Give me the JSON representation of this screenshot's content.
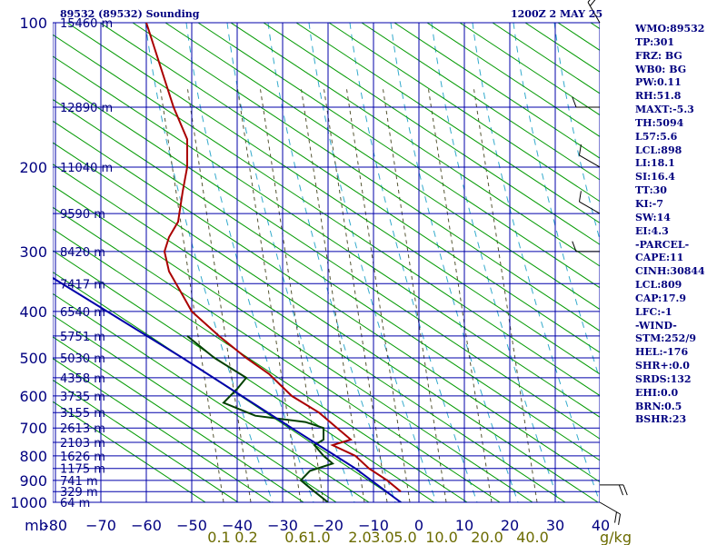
{
  "header": {
    "title": "89532 (89532) Sounding",
    "datetime": "1200Z  2 MAY 25"
  },
  "side_panel": [
    "WMO:89532",
    "TP:301",
    "FRZ: BG",
    "WB0: BG",
    "PW:0.11",
    "RH:51.8",
    "MAXT:-5.3",
    "TH:5094",
    "L57:5.6",
    "LCL:898",
    "LI:18.1",
    "SI:16.4",
    "TT:30",
    "KI:-7",
    "SW:14",
    "EI:4.3",
    "-PARCEL-",
    "CAPE:11",
    "CINH:30844",
    "LCL:809",
    "CAP:17.9",
    "LFC:-1",
    "-WIND-",
    "STM:252/9",
    "HEL:-176",
    "SHR+:0.0",
    "SRDS:132",
    "EHI:0.0",
    "BRN:0.5",
    "BSHR:23"
  ],
  "chart_data": {
    "type": "line",
    "subtype": "skew-T log-p sounding",
    "y_axis_unit": "mb",
    "x_axis_unit": "C",
    "x_ticks": [
      -80,
      -70,
      -60,
      -50,
      -40,
      -30,
      -20,
      -10,
      0,
      10,
      20,
      30,
      40
    ],
    "x_tick_labels": [
      "-80",
      "−70",
      "−60",
      "−50",
      "−40",
      "−30",
      "−20",
      "−10",
      "0",
      "10",
      "20",
      "30",
      "40"
    ],
    "pressure_levels": [
      {
        "p": 100,
        "label": "100",
        "height": "15460 m"
      },
      {
        "p": 150,
        "label": "",
        "height": "12890 m"
      },
      {
        "p": 200,
        "label": "200",
        "height": "11040 m"
      },
      {
        "p": 250,
        "label": "",
        "height": "9590 m"
      },
      {
        "p": 300,
        "label": "300",
        "height": "8420 m"
      },
      {
        "p": 350,
        "label": "",
        "height": "7417 m"
      },
      {
        "p": 400,
        "label": "400",
        "height": "6540 m"
      },
      {
        "p": 450,
        "label": "",
        "height": "5751 m"
      },
      {
        "p": 500,
        "label": "500",
        "height": "5030 m"
      },
      {
        "p": 550,
        "label": "",
        "height": "4358 m"
      },
      {
        "p": 600,
        "label": "600",
        "height": "3735 m"
      },
      {
        "p": 650,
        "label": "",
        "height": "3155 m"
      },
      {
        "p": 700,
        "label": "700",
        "height": "2613 m"
      },
      {
        "p": 750,
        "label": "",
        "height": "2103 m"
      },
      {
        "p": 800,
        "label": "800",
        "height": "1626 m"
      },
      {
        "p": 850,
        "label": "",
        "height": "1175 m"
      },
      {
        "p": 900,
        "label": "900",
        "height": "741 m"
      },
      {
        "p": 950,
        "label": "",
        "height": "329 m"
      },
      {
        "p": 1000,
        "label": "1000",
        "height": "64 m"
      }
    ],
    "mixing_ratio_labels": [
      {
        "value": "0.1",
        "t": -44
      },
      {
        "value": "0.2",
        "t": -38
      },
      {
        "value": "0.6",
        "t": -27
      },
      {
        "value": "1.0",
        "t": -22
      },
      {
        "value": "2.0",
        "t": -13
      },
      {
        "value": "3.0",
        "t": -8
      },
      {
        "value": "5.0",
        "t": -3
      },
      {
        "value": "10.0",
        "t": 5
      },
      {
        "value": "20.0",
        "t": 15
      },
      {
        "value": "40.0",
        "t": 25
      }
    ],
    "gkg_label": "g/kg",
    "series": [
      {
        "type": "temperature",
        "color": "#aa0000",
        "points": [
          {
            "p": 100,
            "t": -60
          },
          {
            "p": 150,
            "t": -54
          },
          {
            "p": 175,
            "t": -51
          },
          {
            "p": 200,
            "t": -51
          },
          {
            "p": 225,
            "t": -52
          },
          {
            "p": 260,
            "t": -53
          },
          {
            "p": 280,
            "t": -55
          },
          {
            "p": 300,
            "t": -56
          },
          {
            "p": 330,
            "t": -55
          },
          {
            "p": 370,
            "t": -52
          },
          {
            "p": 400,
            "t": -50
          },
          {
            "p": 450,
            "t": -44
          },
          {
            "p": 500,
            "t": -38
          },
          {
            "p": 540,
            "t": -33
          },
          {
            "p": 600,
            "t": -28
          },
          {
            "p": 650,
            "t": -22
          },
          {
            "p": 700,
            "t": -18
          },
          {
            "p": 740,
            "t": -15
          },
          {
            "p": 760,
            "t": -19
          },
          {
            "p": 800,
            "t": -14
          },
          {
            "p": 850,
            "t": -11
          },
          {
            "p": 900,
            "t": -7
          },
          {
            "p": 950,
            "t": -4
          }
        ]
      },
      {
        "type": "dewpoint",
        "color": "#004000",
        "points": [
          {
            "p": 450,
            "t": -51
          },
          {
            "p": 500,
            "t": -45
          },
          {
            "p": 550,
            "t": -38
          },
          {
            "p": 580,
            "t": -40
          },
          {
            "p": 620,
            "t": -43
          },
          {
            "p": 660,
            "t": -36
          },
          {
            "p": 680,
            "t": -25
          },
          {
            "p": 700,
            "t": -21
          },
          {
            "p": 740,
            "t": -21
          },
          {
            "p": 760,
            "t": -23
          },
          {
            "p": 800,
            "t": -21
          },
          {
            "p": 830,
            "t": -19
          },
          {
            "p": 860,
            "t": -24
          },
          {
            "p": 900,
            "t": -26
          },
          {
            "p": 950,
            "t": -23
          },
          {
            "p": 1000,
            "t": -20
          }
        ]
      },
      {
        "type": "parcel",
        "color": "#0000aa",
        "points": [
          {
            "p": 300,
            "t": -90
          },
          {
            "p": 500,
            "t": -52
          },
          {
            "p": 700,
            "t": -28
          },
          {
            "p": 850,
            "t": -14
          },
          {
            "p": 1000,
            "t": -4
          }
        ]
      }
    ],
    "wind_barbs": [
      {
        "p": 100,
        "dir": 330,
        "spd": 15
      },
      {
        "p": 150,
        "dir": 270,
        "spd": 10
      },
      {
        "p": 200,
        "dir": 300,
        "spd": 10
      },
      {
        "p": 250,
        "dir": 300,
        "spd": 10
      },
      {
        "p": 300,
        "dir": 270,
        "spd": 5
      },
      {
        "p": 920,
        "dir": 90,
        "spd": 15
      },
      {
        "p": 1000,
        "dir": 120,
        "spd": 15
      }
    ]
  }
}
